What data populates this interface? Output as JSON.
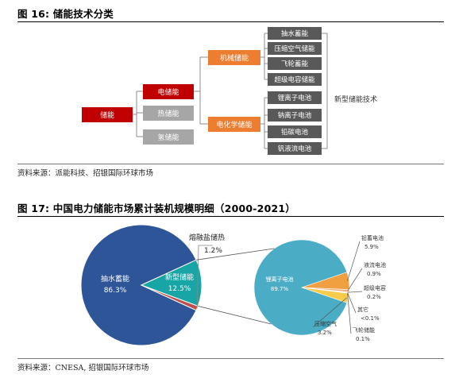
{
  "fig16": {
    "title": "图 16: 储能技术分类",
    "source": "资料来源：派能科技、招银国际环球市场",
    "root": "储能",
    "level1": [
      "电储能",
      "热储能",
      "氢储能"
    ],
    "level2": [
      "机械储能",
      "电化学储能"
    ],
    "mechanical": [
      "抽水蓄能",
      "压缩空气储能",
      "飞轮蓄能",
      "超级电容储能"
    ],
    "electrochemical": [
      "锂离子电池",
      "钠离子电池",
      "铅碳电池",
      "钒液流电池"
    ],
    "bracket_label": "新型储能技术",
    "colors": {
      "root": "#c00000",
      "electric": "#c00000",
      "other": "#a6a6a6",
      "level2": "#ed7d31",
      "leaf": "#595959"
    }
  },
  "fig17": {
    "title": "图 17: 中国电力储能市场累计装机规模明细（2000-2021）",
    "source": "资料来源：CNESA, 招银国际环球市场",
    "chart_data": [
      {
        "type": "pie",
        "slices": [
          {
            "label": "抽水蓄能",
            "value": 86.3,
            "display": "86.3%",
            "color": "#2e5597"
          },
          {
            "label": "新型储能",
            "value": 12.5,
            "display": "12.5%",
            "color": "#17a5a5"
          },
          {
            "label": "熔融盐储热",
            "value": 1.2,
            "display": "1.2%",
            "color": "#c0504d"
          }
        ]
      },
      {
        "type": "pie",
        "slices": [
          {
            "label": "锂离子电池",
            "value": 89.7,
            "display": "89.7%",
            "color": "#4bacc6"
          },
          {
            "label": "铅蓄电池",
            "value": 5.9,
            "display": "5.9%",
            "color": "#f0a040"
          },
          {
            "label": "液流电池",
            "value": 0.9,
            "display": "0.9%",
            "color": "#f4b183"
          },
          {
            "label": "超级电容",
            "value": 0.2,
            "display": "0.2%",
            "color": "#c00000"
          },
          {
            "label": "其它",
            "value": 0.1,
            "display": "<0.1%",
            "color": "#7f7f7f"
          },
          {
            "label": "飞轮储能",
            "value": 0.1,
            "display": "0.1%",
            "color": "#ffc000"
          },
          {
            "label": "压缩空气",
            "value": 3.2,
            "display": "3.2%",
            "color": "#f7cb4d"
          }
        ]
      }
    ]
  }
}
